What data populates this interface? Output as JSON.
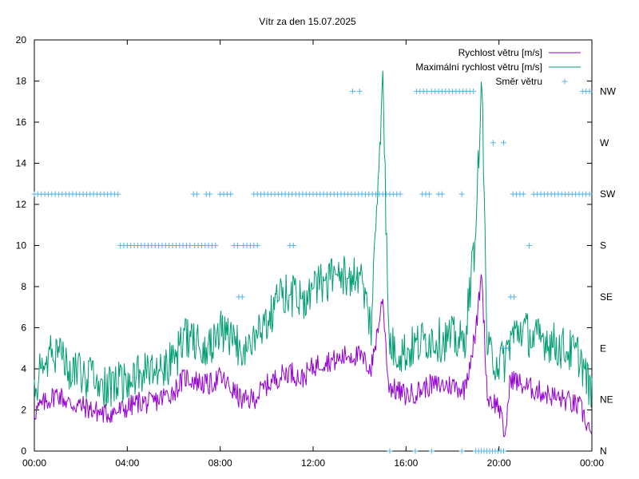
{
  "chart_data": {
    "type": "line",
    "title": "Vítr za den 15.07.2025",
    "x_ticks": [
      "00:00",
      "04:00",
      "08:00",
      "12:00",
      "16:00",
      "20:00",
      "00:00"
    ],
    "x_range_hours": [
      0,
      24
    ],
    "y_left_ticks": [
      "0",
      "2",
      "4",
      "6",
      "8",
      "10",
      "12",
      "14",
      "16",
      "18",
      "20"
    ],
    "ylim_left": [
      0,
      20
    ],
    "y_right_ticks": [
      "N",
      "NE",
      "E",
      "SE",
      "S",
      "SW",
      "W",
      "NW"
    ],
    "legend": {
      "position": "top-right",
      "items": [
        {
          "label": "Rychlost větru [m/s]",
          "color": "#9400d3",
          "style": "line"
        },
        {
          "label": "Maximální rychlost větru [m/s]",
          "color": "#009e73",
          "style": "line"
        },
        {
          "label": "Směr větru",
          "color": "#56b4e9",
          "style": "point"
        }
      ]
    },
    "series": [
      {
        "name": "Rychlost větru [m/s]",
        "color": "#9400d3",
        "x": [
          0,
          0.5,
          1,
          1.5,
          2,
          2.5,
          3,
          3.5,
          4,
          4.5,
          5,
          5.5,
          6,
          6.5,
          7,
          7.5,
          8,
          8.5,
          9,
          9.5,
          10,
          10.5,
          11,
          11.5,
          12,
          12.5,
          13,
          13.5,
          14,
          14.5,
          15,
          15.25,
          15.5,
          16,
          16.5,
          17,
          17.5,
          18,
          18.5,
          19,
          19.25,
          19.5,
          20,
          20.25,
          20.5,
          21,
          21.5,
          22,
          22.5,
          23,
          23.5,
          24
        ],
        "values": [
          1.9,
          2.4,
          2.8,
          2.3,
          2.2,
          2.0,
          1.8,
          1.9,
          2.1,
          2.4,
          2.3,
          2.6,
          2.9,
          3.6,
          3.4,
          3.2,
          3.6,
          3.0,
          2.4,
          2.6,
          3.2,
          3.6,
          3.9,
          3.5,
          4.1,
          4.4,
          4.4,
          4.7,
          4.6,
          4.0,
          7.4,
          3.2,
          3.0,
          2.7,
          2.9,
          3.2,
          3.2,
          3.2,
          3.0,
          5.7,
          8.8,
          2.6,
          2.2,
          0.6,
          3.6,
          3.2,
          3.0,
          2.8,
          2.6,
          2.4,
          2.1,
          0.8
        ]
      },
      {
        "name": "Maximální rychlost větru [m/s]",
        "color": "#009e73",
        "x": [
          0,
          0.5,
          1,
          1.5,
          2,
          2.5,
          3,
          3.5,
          4,
          4.5,
          5,
          5.5,
          6,
          6.5,
          7,
          7.5,
          8,
          8.5,
          9,
          9.5,
          10,
          10.5,
          11,
          11.5,
          12,
          12.5,
          13,
          13.5,
          14,
          14.5,
          15,
          15.25,
          15.5,
          16,
          16.5,
          17,
          17.5,
          18,
          18.5,
          19,
          19.25,
          19.5,
          20,
          20.25,
          20.5,
          21,
          21.5,
          22,
          22.5,
          23,
          23.5,
          24
        ],
        "values": [
          3.2,
          4.4,
          4.9,
          4.1,
          3.8,
          3.4,
          3.0,
          3.2,
          3.6,
          3.9,
          3.9,
          4.2,
          4.4,
          5.4,
          5.5,
          5.1,
          5.8,
          5.3,
          5.0,
          5.5,
          6.5,
          7.3,
          7.6,
          7.4,
          7.9,
          8.3,
          8.6,
          8.4,
          8.7,
          6.0,
          18.5,
          5.4,
          4.9,
          4.8,
          5.2,
          5.5,
          5.4,
          5.5,
          5.2,
          10.5,
          18.5,
          4.8,
          4.3,
          4.4,
          5.5,
          6.0,
          5.4,
          5.5,
          5.1,
          4.9,
          4.6,
          2.6
        ]
      }
    ],
    "wind_direction": {
      "name": "Směr větru",
      "color": "#56b4e9",
      "categories": [
        "N",
        "NE",
        "E",
        "SE",
        "S",
        "SW",
        "W",
        "NW"
      ],
      "points": [
        {
          "t": [
            0.0,
            3.6,
            0.15
          ],
          "dir": "SW"
        },
        {
          "t": [
            3.7,
            6.8,
            0.15
          ],
          "dir": "S"
        },
        {
          "t": [
            6.9,
            7.9,
            0.15
          ],
          "dir": "S"
        },
        {
          "t": [
            6.85,
            7.0,
            0.15
          ],
          "dir": "SW"
        },
        {
          "t": [
            7.4,
            7.55,
            0.15
          ],
          "dir": "SW"
        },
        {
          "t": [
            8.0,
            8.5,
            0.15
          ],
          "dir": "SW"
        },
        {
          "t": [
            8.6,
            8.8,
            0.15
          ],
          "dir": "S"
        },
        {
          "t": [
            8.8,
            9.05,
            0.15
          ],
          "dir": "SE"
        },
        {
          "t": [
            9.0,
            9.6,
            0.15
          ],
          "dir": "S"
        },
        {
          "t": [
            9.45,
            15.8,
            0.15
          ],
          "dir": "SW"
        },
        {
          "t": [
            11.0,
            11.2,
            0.15
          ],
          "dir": "S"
        },
        {
          "t": [
            13.7,
            14.1,
            0.3
          ],
          "dir": "NW"
        },
        {
          "t": [
            16.45,
            16.95,
            0.15
          ],
          "dir": "NW"
        },
        {
          "t": [
            16.7,
            17.0,
            0.15
          ],
          "dir": "SW"
        },
        {
          "t": [
            17.1,
            18.9,
            0.15
          ],
          "dir": "NW"
        },
        {
          "t": [
            17.4,
            17.65,
            0.15
          ],
          "dir": "SW"
        },
        {
          "t": [
            18.4,
            18.5,
            0.15
          ],
          "dir": "SW"
        },
        {
          "t": [
            19.75,
            19.8,
            0.15
          ],
          "dir": "W"
        },
        {
          "t": [
            20.2,
            20.3,
            0.15
          ],
          "dir": "W"
        },
        {
          "t": [
            20.2,
            20.4,
            0.1
          ],
          "dir": "E"
        },
        {
          "t": [
            20.5,
            20.65,
            0.15
          ],
          "dir": "SE"
        },
        {
          "t": [
            20.6,
            21.1,
            0.15
          ],
          "dir": "SW"
        },
        {
          "t": [
            21.3,
            21.35,
            0.15
          ],
          "dir": "S"
        },
        {
          "t": [
            21.5,
            24.0,
            0.15
          ],
          "dir": "SW"
        },
        {
          "t": [
            23.6,
            24.0,
            0.15
          ],
          "dir": "NW"
        },
        {
          "t": [
            15.3,
            15.35,
            0.15
          ],
          "dir": "N"
        },
        {
          "t": [
            16.4,
            16.45,
            0.15
          ],
          "dir": "N"
        },
        {
          "t": [
            17.1,
            17.15,
            0.15
          ],
          "dir": "N"
        },
        {
          "t": [
            18.4,
            18.45,
            0.15
          ],
          "dir": "N"
        },
        {
          "t": [
            19.0,
            20.3,
            0.12
          ],
          "dir": "N"
        }
      ]
    },
    "grid": false
  }
}
